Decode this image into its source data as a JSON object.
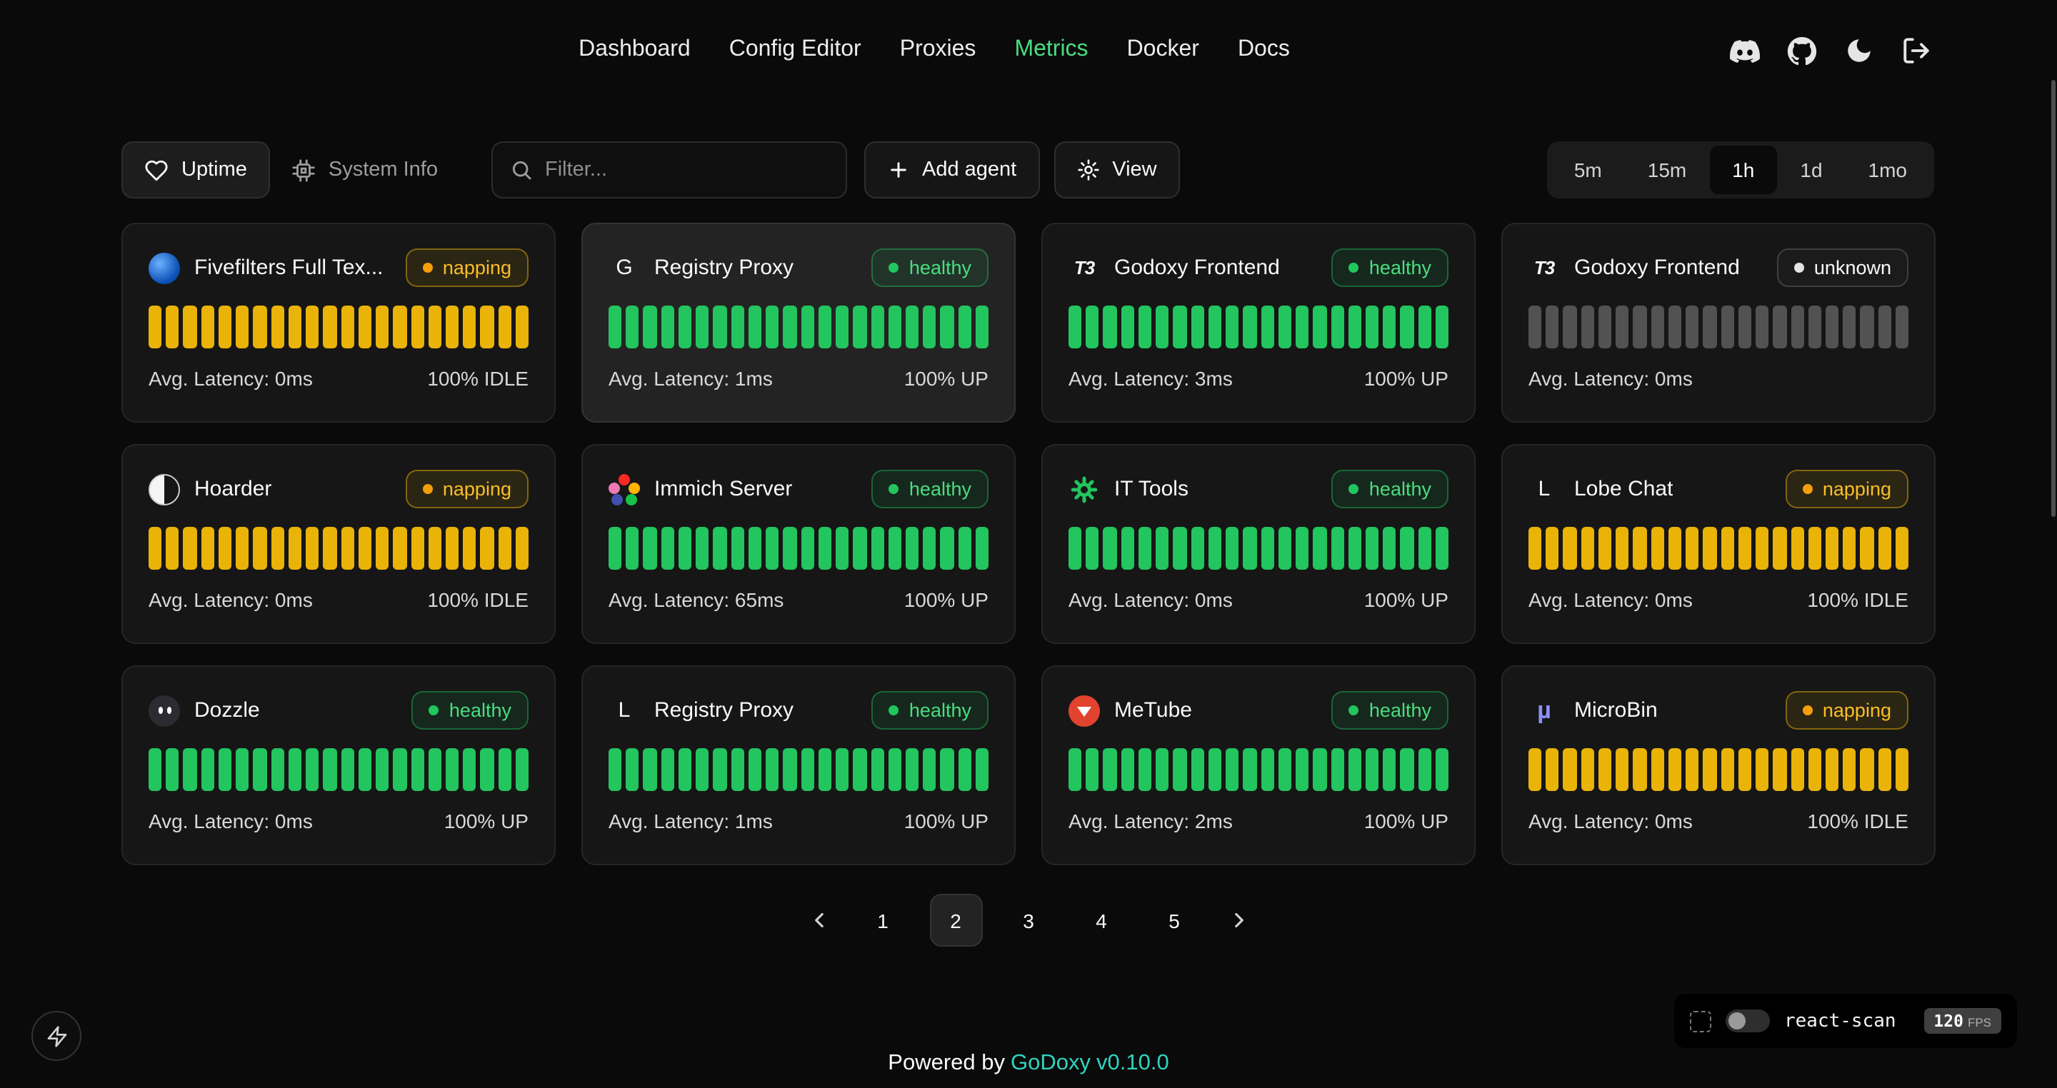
{
  "nav": {
    "items": [
      {
        "label": "Dashboard",
        "active": false
      },
      {
        "label": "Config Editor",
        "active": false
      },
      {
        "label": "Proxies",
        "active": false
      },
      {
        "label": "Metrics",
        "active": true
      },
      {
        "label": "Docker",
        "active": false
      },
      {
        "label": "Docs",
        "active": false
      }
    ],
    "header_icons": [
      "discord-icon",
      "github-icon",
      "moon-icon",
      "logout-icon"
    ]
  },
  "toolbar": {
    "tabs": [
      {
        "label": "Uptime",
        "active": true,
        "icon": "heart-icon"
      },
      {
        "label": "System Info",
        "active": false,
        "icon": "cpu-icon"
      }
    ],
    "filter_placeholder": "Filter...",
    "add_agent_label": "Add agent",
    "view_label": "View"
  },
  "time_ranges": {
    "options": [
      "5m",
      "15m",
      "1h",
      "1d",
      "1mo"
    ],
    "selected": "1h"
  },
  "uptime_grid": {
    "bars_per_card": 22,
    "cards": [
      {
        "name": "Fivefilters Full Tex...",
        "icon": {
          "type": "fivefilters"
        },
        "status": "napping",
        "latency": "Avg. Latency: 0ms",
        "uptime": "100% IDLE",
        "highlighted": false
      },
      {
        "name": "Registry Proxy",
        "icon": {
          "type": "letter",
          "text": "G"
        },
        "status": "healthy",
        "latency": "Avg. Latency: 1ms",
        "uptime": "100% UP",
        "highlighted": true
      },
      {
        "name": "Godoxy Frontend",
        "icon": {
          "type": "t3"
        },
        "status": "healthy",
        "latency": "Avg. Latency: 3ms",
        "uptime": "100% UP",
        "highlighted": false
      },
      {
        "name": "Godoxy Frontend",
        "icon": {
          "type": "t3"
        },
        "status": "unknown",
        "latency": "Avg. Latency: 0ms",
        "uptime": "",
        "highlighted": false
      },
      {
        "name": "Hoarder",
        "icon": {
          "type": "hoarder"
        },
        "status": "napping",
        "latency": "Avg. Latency: 0ms",
        "uptime": "100% IDLE",
        "highlighted": false
      },
      {
        "name": "Immich Server",
        "icon": {
          "type": "immich"
        },
        "status": "healthy",
        "latency": "Avg. Latency: 65ms",
        "uptime": "100% UP",
        "highlighted": false
      },
      {
        "name": "IT Tools",
        "icon": {
          "type": "it-tools"
        },
        "status": "healthy",
        "latency": "Avg. Latency: 0ms",
        "uptime": "100% UP",
        "highlighted": false
      },
      {
        "name": "Lobe Chat",
        "icon": {
          "type": "letter",
          "text": "L"
        },
        "status": "napping",
        "latency": "Avg. Latency: 0ms",
        "uptime": "100% IDLE",
        "highlighted": false
      },
      {
        "name": "Dozzle",
        "icon": {
          "type": "dozzle"
        },
        "status": "healthy",
        "latency": "Avg. Latency: 0ms",
        "uptime": "100% UP",
        "highlighted": false
      },
      {
        "name": "Registry Proxy",
        "icon": {
          "type": "letter",
          "text": "L"
        },
        "status": "healthy",
        "latency": "Avg. Latency: 1ms",
        "uptime": "100% UP",
        "highlighted": false
      },
      {
        "name": "MeTube",
        "icon": {
          "type": "metube"
        },
        "status": "healthy",
        "latency": "Avg. Latency: 2ms",
        "uptime": "100% UP",
        "highlighted": false
      },
      {
        "name": "MicroBin",
        "icon": {
          "type": "microbin"
        },
        "status": "napping",
        "latency": "Avg. Latency: 0ms",
        "uptime": "100% IDLE",
        "highlighted": false
      }
    ]
  },
  "pagination": {
    "pages": [
      1,
      2,
      3,
      4,
      5
    ],
    "current": 2
  },
  "footer": {
    "prefix": "Powered by",
    "brand": "GoDoxy",
    "version": "v0.10.0"
  },
  "react_scan": {
    "label": "react-scan",
    "fps": "120",
    "fps_unit": "FPS"
  },
  "colors": {
    "accent": "#4ade80",
    "brand_teal": "#2dd4bf",
    "status": {
      "healthy": "#22c55e",
      "napping": "#eab308",
      "unknown": "#525252"
    },
    "badge_text": {
      "healthy": "#4ade80",
      "napping": "#fbbf24",
      "unknown": "#fafafa"
    }
  }
}
